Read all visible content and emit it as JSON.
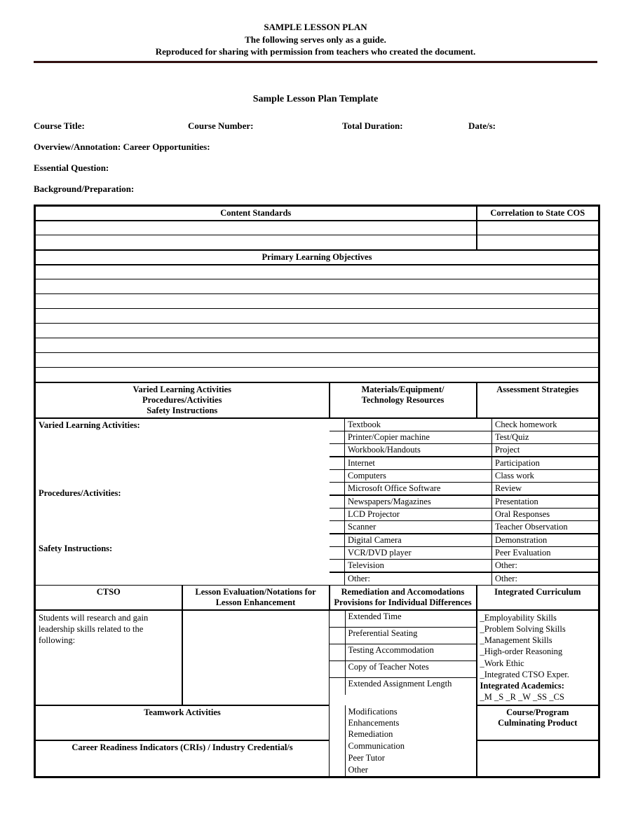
{
  "header": {
    "line1": "SAMPLE LESSON PLAN",
    "line2": "The following serves only as a guide.",
    "line3": "Reproduced for sharing with permission from teachers who created the document."
  },
  "rule_color": "#7a2626",
  "subtitle": "Sample Lesson Plan Template",
  "fields": {
    "course_title": "Course Title:",
    "course_number": "Course Number:",
    "total_duration": "Total Duration:",
    "dates": "Date/s:",
    "overview": "Overview/Annotation:  Career Opportunities:",
    "essential_question": "Essential Question:",
    "background": "Background/Preparation:"
  },
  "section_headers": {
    "content_standards": "Content Standards",
    "correlation": "Correlation to State COS",
    "primary_objectives": "Primary Learning Objectives",
    "varied_header_l1": "Varied Learning Activities",
    "varied_header_l2": "Procedures/Activities",
    "varied_header_l3": "Safety Instructions",
    "materials_l1": "Materials/Equipment/",
    "materials_l2": "Technology Resources",
    "assessment": "Assessment Strategies",
    "ctso": "CTSO",
    "lesson_eval_l1": "Lesson Evaluation/Notations for",
    "lesson_eval_l2": "Lesson Enhancement",
    "remediation_l1": "Remediation and Accomodations",
    "remediation_l2": "Provisions for Individual Differences",
    "integrated": "Integrated Curriculum",
    "teamwork": "Teamwork Activities",
    "course_prog_l1": "Course/Program",
    "course_prog_l2": "Culminating Product",
    "cri": "Career Readiness Indicators (CRIs) / Industry Credential/s"
  },
  "left_labels": {
    "varied": "Varied Learning Activities:",
    "procedures": "Procedures/Activities:",
    "safety": "Safety Instructions:"
  },
  "ctso_text": "Students will research and gain leadership skills related to the following:",
  "materials": [
    "Textbook",
    "Printer/Copier machine",
    "Workbook/Handouts",
    "Internet",
    "Computers",
    "Microsoft Office Software",
    "Newspapers/Magazines",
    "LCD Projector",
    "Scanner",
    "Digital Camera",
    "VCR/DVD player",
    "Television",
    "Other:"
  ],
  "assessments": [
    "Check homework",
    "Test/Quiz",
    "Project",
    "Participation",
    "Class work",
    "Review",
    "Presentation",
    "Oral Responses",
    "Teacher Observation",
    "Demonstration",
    "Peer Evaluation",
    "Other:",
    "Other:"
  ],
  "remediation_items": [
    "Extended Time",
    "Preferential Seating",
    "Testing Accommodation",
    "Copy of Teacher Notes",
    "Extended Assignment Length"
  ],
  "modifications": [
    "Modifications",
    "Enhancements",
    "Remediation"
  ],
  "bottom_items": [
    "Communication",
    "Peer Tutor",
    "Other"
  ],
  "integrated_items": [
    "_Employability Skills",
    "_Problem Solving Skills",
    "_Management Skills",
    "_High-order Reasoning",
    "_Work Ethic",
    "_Integrated CTSO Exper."
  ],
  "integrated_academics_label": "Integrated Academics:",
  "integrated_academics_codes": "_M  _S  _R  _W  _SS  _CS",
  "colors": {
    "text": "#000000",
    "background": "#ffffff",
    "border": "#000000"
  }
}
